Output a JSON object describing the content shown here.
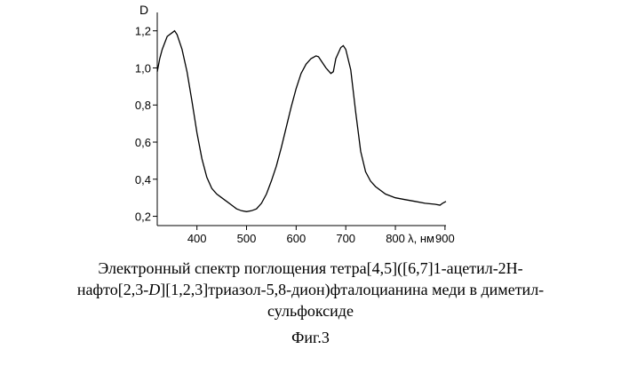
{
  "chart_data": {
    "type": "line",
    "ylabel": "D",
    "xlabel": "λ, нм",
    "xlim": [
      320,
      902
    ],
    "ylim": [
      0.15,
      1.28
    ],
    "xticks": [
      400,
      500,
      600,
      700,
      800,
      900
    ],
    "xtick_labels": [
      "400",
      "500",
      "600",
      "700",
      "800",
      "900"
    ],
    "yticks": [
      0.2,
      0.4,
      0.6,
      0.8,
      1.0,
      1.2
    ],
    "ytick_labels": [
      "0,2",
      "0,4",
      "0,6",
      "0,8",
      "1,0",
      "1,2"
    ],
    "grid": false,
    "series": [
      {
        "x": [
          320,
          325,
          330,
          340,
          350,
          355,
          360,
          370,
          380,
          390,
          400,
          410,
          420,
          430,
          440,
          450,
          460,
          470,
          480,
          490,
          500,
          510,
          520,
          530,
          540,
          550,
          560,
          570,
          580,
          590,
          600,
          610,
          620,
          630,
          640,
          645,
          650,
          660,
          670,
          675,
          680,
          690,
          695,
          700,
          710,
          720,
          730,
          740,
          750,
          760,
          780,
          800,
          820,
          840,
          860,
          880,
          890,
          895,
          902
        ],
        "y": [
          0.98,
          1.05,
          1.1,
          1.17,
          1.19,
          1.2,
          1.18,
          1.1,
          0.98,
          0.82,
          0.65,
          0.51,
          0.41,
          0.35,
          0.32,
          0.3,
          0.28,
          0.26,
          0.24,
          0.23,
          0.225,
          0.23,
          0.24,
          0.27,
          0.32,
          0.39,
          0.47,
          0.57,
          0.68,
          0.79,
          0.89,
          0.97,
          1.02,
          1.05,
          1.065,
          1.06,
          1.04,
          1.0,
          0.97,
          0.98,
          1.05,
          1.11,
          1.12,
          1.1,
          0.99,
          0.76,
          0.55,
          0.44,
          0.39,
          0.36,
          0.32,
          0.3,
          0.29,
          0.28,
          0.27,
          0.265,
          0.26,
          0.27,
          0.28
        ]
      }
    ]
  },
  "caption": {
    "line1": "Электронный спектр поглощения тетра[4,5]([6,7]1-ацетил-2H-",
    "line2_pre": "нафто[2,3-",
    "line2_italic": "D",
    "line2_post": "][1,2,3]триазол-5,8-дион)фталоцианина меди в диметил-",
    "line3": "сульфоксиде"
  },
  "figure_label": "Фиг.3"
}
